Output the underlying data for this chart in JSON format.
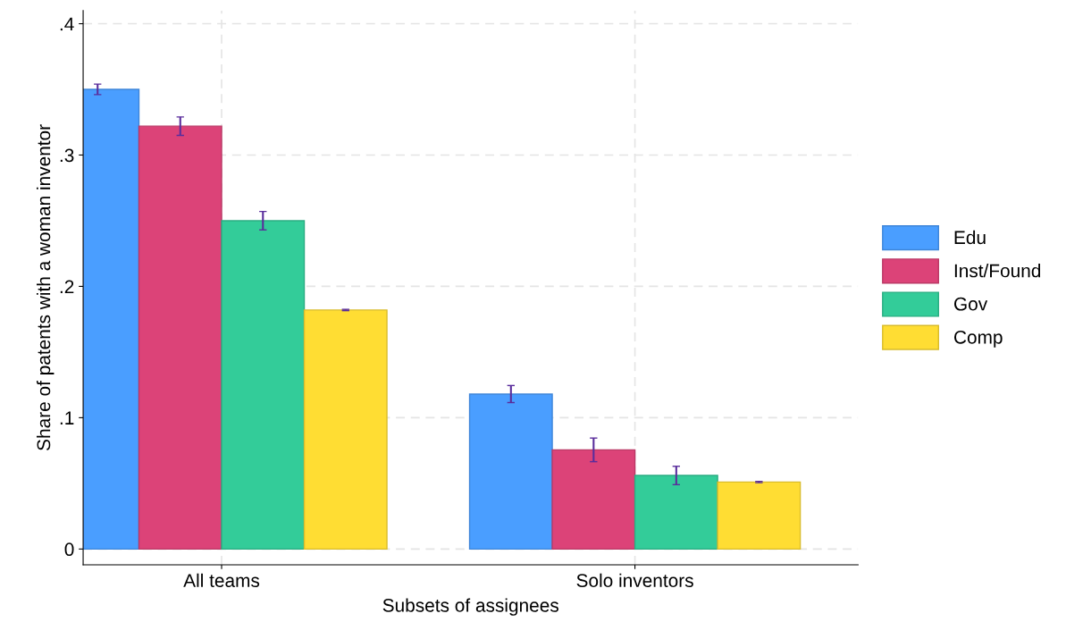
{
  "chart_data": {
    "type": "bar",
    "xlabel": "Subsets of assignees",
    "ylabel": "Share of patents with a woman inventor",
    "categories": [
      "All teams",
      "Solo inventors"
    ],
    "series": [
      {
        "name": "Edu",
        "color": "#4a9eff",
        "values": [
          0.35,
          0.118
        ],
        "errors": [
          0.004,
          0.0065
        ]
      },
      {
        "name": "Inst/Found",
        "color": "#dc4378",
        "values": [
          0.322,
          0.0755
        ],
        "errors": [
          0.007,
          0.009
        ]
      },
      {
        "name": "Gov",
        "color": "#33cc99",
        "values": [
          0.25,
          0.056
        ],
        "errors": [
          0.007,
          0.007
        ]
      },
      {
        "name": "Comp",
        "color": "#ffdd33",
        "values": [
          0.182,
          0.051
        ],
        "errors": [
          0.0005,
          0.0005
        ]
      }
    ],
    "ylim": [
      -0.012,
      0.41
    ],
    "yticks": [
      {
        "value": 0,
        "label": "0"
      },
      {
        "value": 0.1,
        "label": ".1"
      },
      {
        "value": 0.2,
        "label": ".2"
      },
      {
        "value": 0.3,
        "label": ".3"
      },
      {
        "value": 0.4,
        "label": ".4"
      }
    ],
    "grid": true,
    "legend": "right"
  }
}
